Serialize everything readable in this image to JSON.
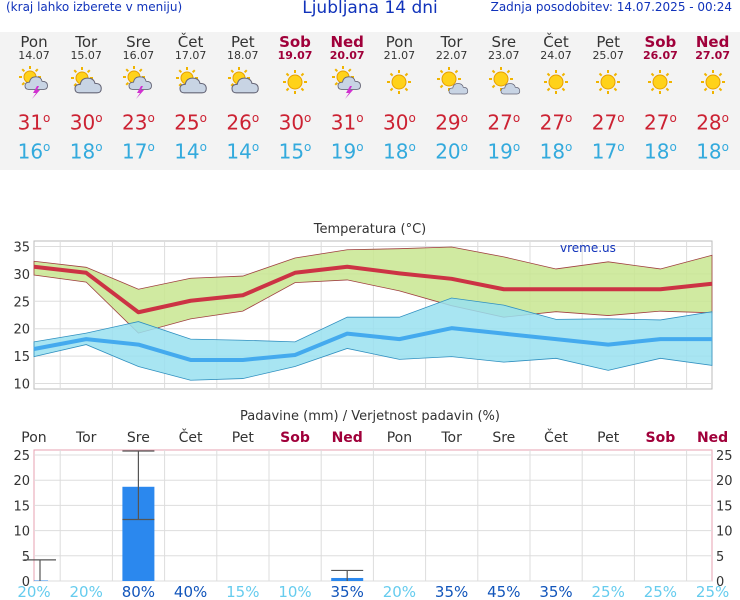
{
  "header": {
    "left_note": "(kraj lahko izberete v meniju)",
    "title": "Ljubljana 14 dni",
    "updated": "Zadnja posodobitev: 14.07.2025 - 00:24"
  },
  "days": [
    {
      "name": "Pon",
      "date": "14.07",
      "icon": "sun-cloud-lightning-icon",
      "max": "31",
      "min": "16",
      "weekend": false
    },
    {
      "name": "Tor",
      "date": "15.07",
      "icon": "sun-cloud-icon",
      "max": "30",
      "min": "18",
      "weekend": false
    },
    {
      "name": "Sre",
      "date": "16.07",
      "icon": "sun-cloud-lightning-icon",
      "max": "23",
      "min": "17",
      "weekend": false
    },
    {
      "name": "Čet",
      "date": "17.07",
      "icon": "sun-cloud-icon",
      "max": "25",
      "min": "14",
      "weekend": false
    },
    {
      "name": "Pet",
      "date": "18.07",
      "icon": "sun-cloud-icon",
      "max": "26",
      "min": "14",
      "weekend": false
    },
    {
      "name": "Sob",
      "date": "19.07",
      "icon": "sun-icon",
      "max": "30",
      "min": "15",
      "weekend": true
    },
    {
      "name": "Ned",
      "date": "20.07",
      "icon": "sun-cloud-lightning-icon",
      "max": "31",
      "min": "19",
      "weekend": true
    },
    {
      "name": "Pon",
      "date": "21.07",
      "icon": "sun-icon",
      "max": "30",
      "min": "18",
      "weekend": false
    },
    {
      "name": "Tor",
      "date": "22.07",
      "icon": "sun-small-cloud-icon",
      "max": "29",
      "min": "20",
      "weekend": false
    },
    {
      "name": "Sre",
      "date": "23.07",
      "icon": "sun-small-cloud-icon",
      "max": "27",
      "min": "19",
      "weekend": false
    },
    {
      "name": "Čet",
      "date": "24.07",
      "icon": "sun-icon",
      "max": "27",
      "min": "18",
      "weekend": false
    },
    {
      "name": "Pet",
      "date": "25.07",
      "icon": "sun-icon",
      "max": "27",
      "min": "17",
      "weekend": false
    },
    {
      "name": "Sob",
      "date": "26.07",
      "icon": "sun-icon",
      "max": "27",
      "min": "18",
      "weekend": true
    },
    {
      "name": "Ned",
      "date": "27.07",
      "icon": "sun-icon",
      "max": "28",
      "min": "18",
      "weekend": true
    }
  ],
  "degree_symbol": "o",
  "colors": {
    "max_line": "#cc3344",
    "min_line": "#44aaee",
    "max_band": "#c8e690",
    "min_band": "#99e0f0",
    "precip_bar": "#2b88ee",
    "weekend": "#a0003a",
    "prob_high": "#1155bb",
    "prob_low": "#66ccee"
  },
  "chart_data": [
    {
      "type": "line",
      "title": "Temperatura (°C)",
      "watermark": "vreme.us",
      "ylim": [
        9,
        36
      ],
      "yticks": [
        10,
        15,
        20,
        25,
        30,
        35
      ],
      "grid": true,
      "x": [
        "Pon",
        "Tor",
        "Sre",
        "Čet",
        "Pet",
        "Sob",
        "Ned",
        "Pon",
        "Tor",
        "Sre",
        "Čet",
        "Pet",
        "Sob",
        "Ned"
      ],
      "series": [
        {
          "name": "max",
          "values": [
            31.3,
            30.2,
            23,
            25.1,
            26.1,
            30.2,
            31.3,
            30.1,
            29.1,
            27.2,
            27.2,
            27.2,
            27.2,
            28.2
          ]
        },
        {
          "name": "min",
          "values": [
            16.3,
            18.1,
            17.1,
            14.3,
            14.3,
            15.2,
            19.1,
            18.1,
            20.1,
            19.1,
            18.1,
            17.1,
            18.1,
            18.1
          ]
        }
      ],
      "max_band_upper": [
        32.3,
        31.2,
        27.2,
        29.2,
        29.6,
        32.9,
        34.4,
        34.6,
        34.9,
        33.1,
        30.9,
        32.2,
        30.9,
        33.4
      ],
      "max_band_lower": [
        29.8,
        28.5,
        19.2,
        21.8,
        23.2,
        28.4,
        28.9,
        26.9,
        24.2,
        22.1,
        23.1,
        22.4,
        23.2,
        22.9
      ],
      "min_band_upper": [
        17.6,
        19.2,
        21.3,
        18.1,
        17.9,
        17.6,
        22.1,
        22.1,
        25.6,
        24.3,
        21.7,
        21.8,
        21.6,
        23.1
      ],
      "min_band_lower": [
        14.9,
        17.1,
        13.1,
        10.6,
        10.9,
        13.1,
        16.4,
        14.4,
        14.9,
        13.9,
        14.6,
        12.4,
        14.6,
        13.3
      ]
    },
    {
      "type": "bar",
      "title": "Padavine (mm) / Verjetnost padavin (%)",
      "ylim": [
        0,
        26
      ],
      "yticks": [
        0,
        5,
        10,
        15,
        20,
        25
      ],
      "categories": [
        "Pon",
        "Tor",
        "Sre",
        "Čet",
        "Pet",
        "Sob",
        "Ned",
        "Pon",
        "Tor",
        "Sre",
        "Čet",
        "Pet",
        "Sob",
        "Ned"
      ],
      "values": [
        0.1,
        0,
        18.7,
        0,
        0,
        0,
        0.6,
        0,
        0,
        0,
        0,
        0,
        0,
        0
      ],
      "error_high": [
        4.2,
        0,
        25.8,
        0,
        0,
        0,
        2.1,
        0,
        0,
        0,
        0,
        0,
        0,
        0
      ],
      "error_low": [
        0,
        0,
        12.2,
        0,
        0,
        0,
        0,
        0,
        0,
        0,
        0,
        0,
        0,
        0
      ],
      "probability": [
        "20%",
        "20%",
        "80%",
        "40%",
        "15%",
        "10%",
        "35%",
        "20%",
        "35%",
        "45%",
        "35%",
        "25%",
        "25%",
        "25%"
      ],
      "probability_strong": [
        false,
        false,
        true,
        true,
        false,
        false,
        true,
        false,
        true,
        true,
        true,
        false,
        false,
        false
      ]
    }
  ]
}
